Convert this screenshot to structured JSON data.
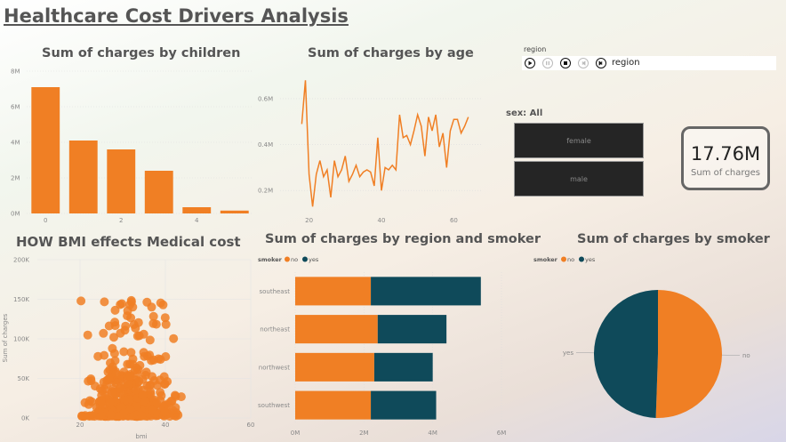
{
  "title": "Healthcare Cost Drivers Analysis",
  "colors": {
    "orange": "#f07f24",
    "teal": "#0f4a5a"
  },
  "children_chart": {
    "title": "Sum of charges by children",
    "type": "bar",
    "categories": [
      "0",
      "1",
      "2",
      "3",
      "4",
      "5"
    ],
    "values": [
      7.1,
      4.1,
      3.6,
      2.4,
      0.35,
      0.16
    ],
    "yticks": [
      "0M",
      "2M",
      "4M",
      "6M",
      "8M"
    ],
    "xticks": [
      "0",
      "2",
      "4"
    ],
    "ylim": [
      0,
      8
    ]
  },
  "age_chart": {
    "title": "Sum of charges by age",
    "type": "line",
    "x": [
      18,
      19,
      20,
      21,
      22,
      23,
      24,
      25,
      26,
      27,
      28,
      29,
      30,
      31,
      32,
      33,
      34,
      35,
      36,
      37,
      38,
      39,
      40,
      41,
      42,
      43,
      44,
      45,
      46,
      47,
      48,
      49,
      50,
      51,
      52,
      53,
      54,
      55,
      56,
      57,
      58,
      59,
      60,
      61,
      62,
      63,
      64
    ],
    "values": [
      0.49,
      0.68,
      0.27,
      0.13,
      0.27,
      0.33,
      0.26,
      0.29,
      0.17,
      0.33,
      0.26,
      0.29,
      0.35,
      0.24,
      0.27,
      0.31,
      0.26,
      0.28,
      0.29,
      0.28,
      0.22,
      0.43,
      0.2,
      0.3,
      0.29,
      0.31,
      0.29,
      0.53,
      0.43,
      0.44,
      0.4,
      0.46,
      0.53,
      0.48,
      0.35,
      0.52,
      0.46,
      0.53,
      0.39,
      0.45,
      0.3,
      0.46,
      0.51,
      0.51,
      0.45,
      0.48,
      0.52
    ],
    "yticks": [
      "0.2M",
      "0.4M",
      "0.6M"
    ],
    "xticks": [
      "20",
      "40",
      "60"
    ]
  },
  "region_slicer": {
    "label": "region",
    "value": "region"
  },
  "sex_slicer": {
    "label": "sex: All",
    "options": [
      "female",
      "male"
    ]
  },
  "card": {
    "value": "17.76M",
    "caption": "Sum of charges"
  },
  "bmi_chart": {
    "title": "HOW BMI effects Medical cost",
    "type": "scatter",
    "ylabel": "Sum of charges",
    "xlabel": "bmi",
    "yticks": [
      "0K",
      "50K",
      "100K",
      "150K",
      "200K"
    ],
    "xticks": [
      "20",
      "40",
      "60"
    ]
  },
  "region_smoker_chart": {
    "title": "Sum of charges by region and smoker",
    "type": "bar",
    "legend_title": "smoker",
    "legend": [
      "no",
      "yes"
    ],
    "categories": [
      "southeast",
      "northeast",
      "northwest",
      "southwest"
    ],
    "series": [
      {
        "name": "no",
        "values": [
          2.2,
          2.4,
          2.3,
          2.2
        ]
      },
      {
        "name": "yes",
        "values": [
          3.2,
          2.0,
          1.7,
          1.9
        ]
      }
    ],
    "xticks": [
      "0M",
      "2M",
      "4M",
      "6M"
    ]
  },
  "smoker_pie": {
    "title": "Sum of charges by smoker",
    "type": "pie",
    "legend_title": "smoker",
    "legend": [
      "no",
      "yes"
    ],
    "slices": [
      {
        "label": "no",
        "value": 8.97
      },
      {
        "label": "yes",
        "value": 8.78
      }
    ]
  }
}
